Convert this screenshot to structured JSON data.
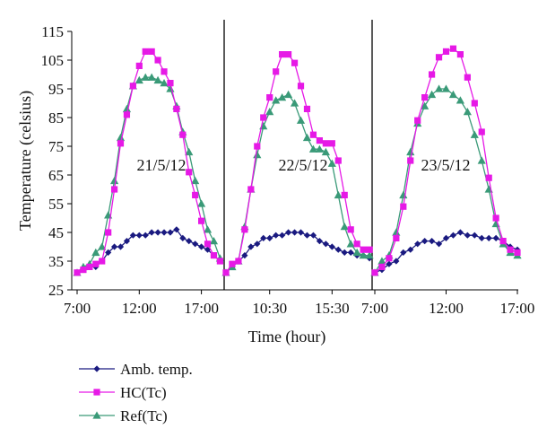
{
  "chart_data": {
    "type": "line",
    "xlabel": "Time (hour)",
    "ylabel": "Temperature (celsius)",
    "ylim": [
      25,
      115
    ],
    "y_ticks": [
      25,
      35,
      45,
      55,
      65,
      75,
      85,
      95,
      105,
      115
    ],
    "x_tick_labels": [
      "7:00",
      "12:00",
      "17:00",
      "10:30",
      "15:30",
      "7:00",
      "12:00",
      "17:00"
    ],
    "panel_labels": [
      "21/5/12",
      "22/5/12",
      "23/5/12"
    ],
    "legend": {
      "placement": "bottom-left"
    },
    "panels": [
      {
        "date": "21/5/12",
        "start_time": "7:00",
        "interval_minutes": 30,
        "series": [
          {
            "name": "Amb. temp.",
            "color": "#1a1a80",
            "marker": "diamond",
            "values": [
              31,
              32,
              33,
              33,
              35,
              38,
              40,
              40,
              42,
              44,
              44,
              44,
              45,
              45,
              45,
              45,
              46,
              43,
              42,
              41,
              40,
              39,
              37,
              35
            ]
          },
          {
            "name": "HC(Tc)",
            "color": "#e619e6",
            "marker": "square",
            "values": [
              31,
              32,
              33,
              34,
              35,
              45,
              60,
              76,
              86,
              96,
              103,
              108,
              108,
              105,
              101,
              97,
              88,
              79,
              66,
              58,
              49,
              41,
              37,
              35
            ]
          },
          {
            "name": "Ref(Tc)",
            "color": "#3a9a78",
            "marker": "triangle",
            "values": [
              31,
              33,
              34,
              38,
              40,
              51,
              63,
              78,
              88,
              96,
              98,
              99,
              99,
              98,
              97,
              95,
              89,
              80,
              73,
              63,
              55,
              46,
              42,
              36
            ]
          }
        ]
      },
      {
        "date": "22/5/12",
        "start_time": "7:00",
        "interval_minutes": 30,
        "series": [
          {
            "name": "Amb. temp.",
            "color": "#1a1a80",
            "marker": "diamond",
            "values": [
              31,
              33,
              35,
              37,
              40,
              41,
              43,
              43,
              44,
              44,
              45,
              45,
              45,
              44,
              44,
              42,
              41,
              40,
              39,
              38,
              38,
              37,
              37,
              36
            ]
          },
          {
            "name": "HC(Tc)",
            "color": "#e619e6",
            "marker": "square",
            "values": [
              31,
              34,
              35,
              46,
              60,
              75,
              85,
              92,
              101,
              107,
              107,
              104,
              96,
              88,
              79,
              77,
              76,
              76,
              70,
              58,
              46,
              41,
              39,
              39
            ]
          },
          {
            "name": "Ref(Tc)",
            "color": "#3a9a78",
            "marker": "triangle",
            "values": [
              31,
              33,
              35,
              47,
              60,
              72,
              82,
              87,
              91,
              92,
              93,
              90,
              84,
              78,
              74,
              74,
              73,
              69,
              58,
              47,
              41,
              38,
              37,
              37
            ]
          }
        ]
      },
      {
        "date": "23/5/12",
        "start_time": "7:00",
        "interval_minutes": 30,
        "series": [
          {
            "name": "Amb. temp.",
            "color": "#1a1a80",
            "marker": "diamond",
            "values": [
              31,
              32,
              34,
              35,
              38,
              39,
              41,
              42,
              42,
              41,
              43,
              44,
              45,
              44,
              44,
              43,
              43,
              43,
              42,
              40,
              39
            ]
          },
          {
            "name": "HC(Tc)",
            "color": "#e619e6",
            "marker": "square",
            "values": [
              31,
              33,
              36,
              43,
              54,
              70,
              84,
              92,
              100,
              106,
              108,
              109,
              107,
              99,
              90,
              80,
              64,
              50,
              42,
              39,
              38
            ]
          },
          {
            "name": "Ref(Tc)",
            "color": "#3a9a78",
            "marker": "triangle",
            "values": [
              31,
              35,
              37,
              45,
              58,
              73,
              83,
              89,
              93,
              95,
              95,
              93,
              91,
              87,
              79,
              70,
              60,
              48,
              41,
              38,
              37
            ]
          }
        ]
      }
    ]
  }
}
